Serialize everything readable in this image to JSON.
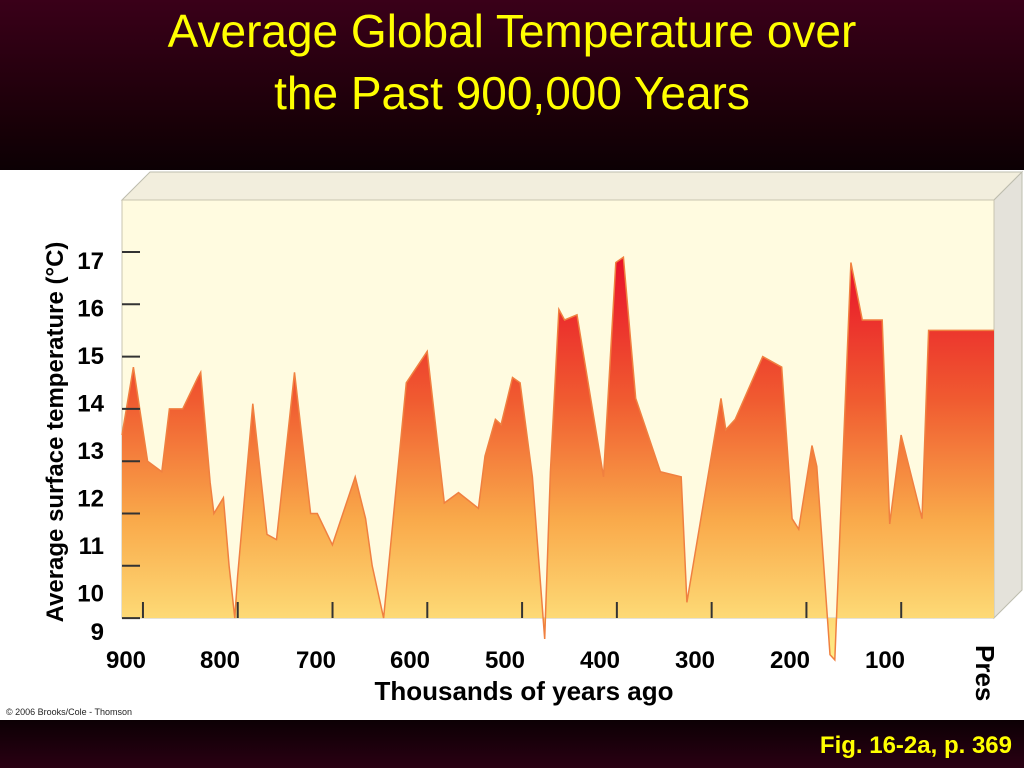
{
  "slide": {
    "title_line1": "Average Global Temperature over",
    "title_line2": "the Past 900,000 Years",
    "credit": "© 2006 Brooks/Cole - Thomson",
    "footer": "Fig. 16-2a, p. 369"
  },
  "colors": {
    "title": "#ffff00",
    "fill_top": "#e8102a",
    "fill_bottom": "#ffee88",
    "panel_bg": "#fffbe0",
    "background": "#1a0008"
  },
  "chart_data": {
    "type": "area",
    "title": "Average Global Temperature over the Past 900,000 Years",
    "xlabel": "Thousands of years ago",
    "ylabel": "Average surface temperature (°C)",
    "x_tick_labels": [
      "900",
      "800",
      "700",
      "600",
      "500",
      "400",
      "300",
      "200",
      "100",
      "Pres"
    ],
    "y_tick_labels": [
      "9",
      "10",
      "11",
      "12",
      "13",
      "14",
      "15",
      "16",
      "17"
    ],
    "xlim": [
      920,
      0
    ],
    "ylim": [
      9,
      17.5
    ],
    "x_reversed": true,
    "grid": false,
    "series": [
      {
        "x": [
          920,
          908,
          893,
          878,
          870,
          856,
          840,
          837,
          827,
          823,
          813,
          807,
          801,
          798,
          782,
          767,
          757,
          738,
          721,
          714,
          698,
          674,
          663,
          656,
          644,
          620,
          598,
          580,
          565,
          544,
          537,
          526,
          520,
          508,
          500,
          487,
          474,
          468,
          459,
          453,
          440,
          412,
          399,
          391,
          378,
          352,
          330,
          324,
          288,
          283,
          273,
          244,
          224,
          213,
          206,
          192,
          187,
          173,
          168,
          151,
          139,
          118,
          110,
          98,
          76,
          69,
          53,
          35,
          22,
          13,
          3,
          0
        ],
        "y": [
          13.5,
          14.8,
          13.0,
          12.8,
          14.0,
          14.0,
          14.6,
          14.7,
          12.6,
          12.0,
          12.3,
          11.0,
          10.0,
          10.8,
          14.1,
          11.6,
          11.5,
          14.7,
          12.0,
          12.0,
          11.4,
          12.7,
          11.9,
          11.0,
          10.0,
          14.5,
          15.1,
          12.2,
          12.4,
          12.1,
          13.1,
          13.8,
          13.7,
          14.6,
          14.5,
          12.7,
          9.6,
          12.8,
          15.9,
          15.7,
          15.8,
          12.7,
          16.8,
          16.9,
          14.2,
          12.8,
          12.7,
          10.3,
          14.2,
          13.6,
          13.8,
          15.0,
          14.8,
          11.9,
          11.7,
          13.3,
          12.9,
          9.3,
          9.2,
          16.8,
          15.7,
          15.7,
          11.8,
          13.5,
          11.9,
          15.5,
          15.5,
          15.5,
          15.5,
          15.5,
          15.5,
          15.5
        ]
      }
    ]
  }
}
